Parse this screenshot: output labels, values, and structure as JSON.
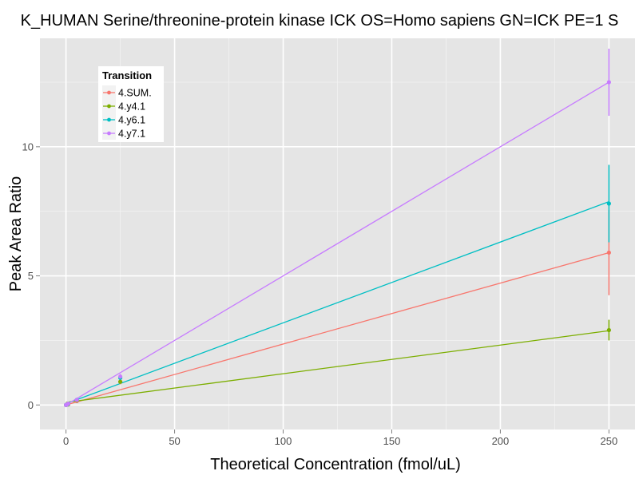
{
  "chart_data": {
    "type": "line",
    "title": "K_HUMAN Serine/threonine-protein kinase ICK OS=Homo sapiens GN=ICK PE=1 S",
    "xlabel": "Theoretical Concentration (fmol/uL)",
    "ylabel": "Peak Area Ratio",
    "xlim": [
      -12,
      262
    ],
    "ylim": [
      -0.95,
      14.2
    ],
    "x_ticks": [
      0,
      50,
      100,
      150,
      200,
      250
    ],
    "y_ticks": [
      0,
      5,
      10
    ],
    "x_tick_labels": [
      "0",
      "50",
      "100",
      "150",
      "200",
      "250"
    ],
    "y_tick_labels": [
      "0",
      "5",
      "10"
    ],
    "grid": true,
    "legend": {
      "title": "Transition",
      "placement": "top-left"
    },
    "series": [
      {
        "name": "4.SUM.",
        "color": "#F8766D",
        "fit": {
          "slope": 0.0236,
          "intercept": 0.0
        },
        "points": [
          {
            "x": 0,
            "y": 0.0
          },
          {
            "x": 0.5,
            "y": 0.02
          },
          {
            "x": 1,
            "y": 0.03
          },
          {
            "x": 5,
            "y": 0.15
          },
          {
            "x": 25,
            "y": 0.9,
            "err": 0.1
          },
          {
            "x": 250,
            "y": 5.9,
            "err": 1.65
          }
        ]
      },
      {
        "name": "4.y4.1",
        "color": "#7CAE00",
        "fit": {
          "slope": 0.0111,
          "intercept": 0.1
        },
        "points": [
          {
            "x": 0,
            "y": 0.0
          },
          {
            "x": 0.5,
            "y": 0.01
          },
          {
            "x": 1,
            "y": 0.02
          },
          {
            "x": 5,
            "y": 0.18
          },
          {
            "x": 25,
            "y": 0.9,
            "err": 0.08
          },
          {
            "x": 250,
            "y": 2.9,
            "err": 0.4
          }
        ]
      },
      {
        "name": "4.y6.1",
        "color": "#00BFC4",
        "fit": {
          "slope": 0.0313,
          "intercept": 0.05
        },
        "points": [
          {
            "x": 0,
            "y": 0.0
          },
          {
            "x": 0.5,
            "y": 0.02
          },
          {
            "x": 1,
            "y": 0.04
          },
          {
            "x": 5,
            "y": 0.2
          },
          {
            "x": 25,
            "y": 1.05,
            "err": 0.1
          },
          {
            "x": 250,
            "y": 7.8,
            "err": 1.5
          }
        ]
      },
      {
        "name": "4.y7.1",
        "color": "#C77CFF",
        "fit": {
          "slope": 0.05,
          "intercept": 0.0
        },
        "points": [
          {
            "x": 0,
            "y": 0.0
          },
          {
            "x": 0.5,
            "y": 0.02
          },
          {
            "x": 1,
            "y": 0.05
          },
          {
            "x": 5,
            "y": 0.2
          },
          {
            "x": 25,
            "y": 1.1,
            "err": 0.1
          },
          {
            "x": 250,
            "y": 12.5,
            "err": 1.3
          }
        ]
      }
    ]
  }
}
